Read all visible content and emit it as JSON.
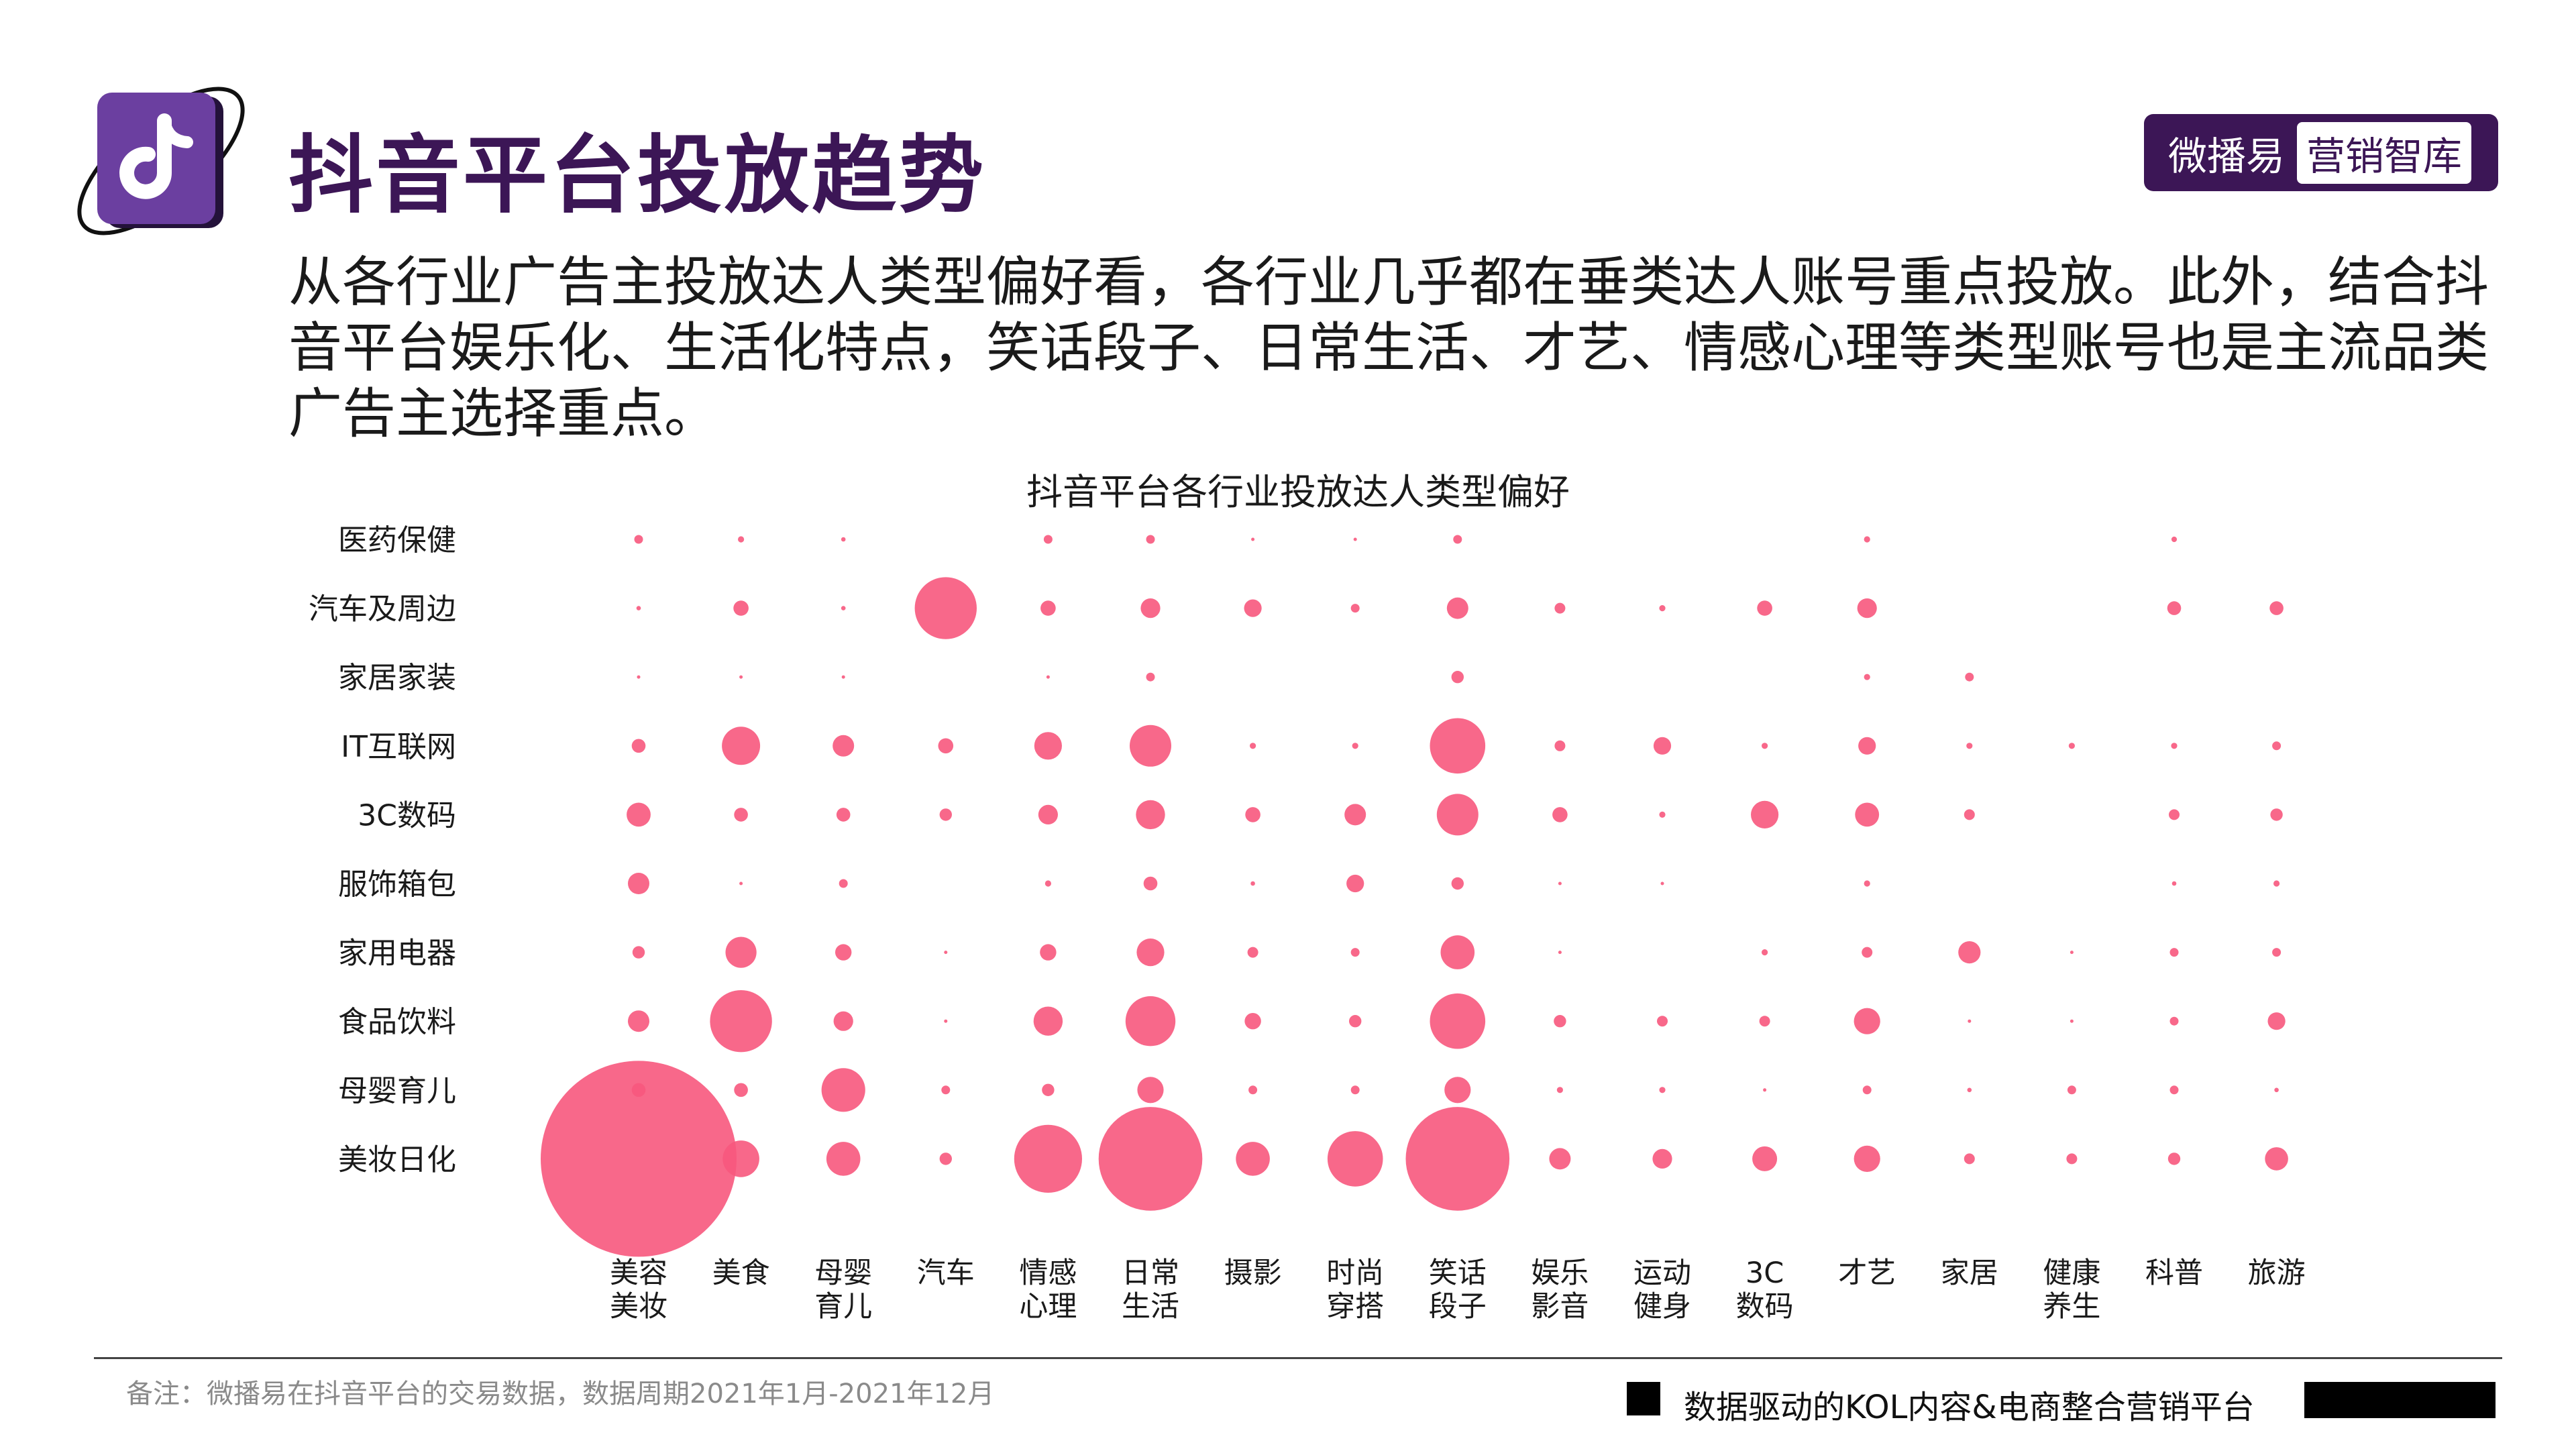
{
  "header": {
    "title": "抖音平台投放趋势",
    "brand": {
      "name": "微播易",
      "tag": "营销智库"
    },
    "intro": "从各行业广告主投放达人类型偏好看，各行业几乎都在垂类达人账号重点投放。此外，结合抖音平台娱乐化、生活化特点，笑话段子、日常生活、才艺、情感心理等类型账号也是主流品类广告主选择重点。"
  },
  "colors": {
    "accent": "#3c1656",
    "bubble": "#f7587d"
  },
  "chart_data": {
    "type": "bubble-matrix",
    "title": "抖音平台各行业投放达人类型偏好",
    "y_categories": [
      "医药保健",
      "汽车及周边",
      "家居家装",
      "IT互联网",
      "3C数码",
      "服饰箱包",
      "家用电器",
      "食品饮料",
      "母婴育儿",
      "美妆日化"
    ],
    "x_categories": [
      [
        "美容",
        "美妆"
      ],
      [
        "美食"
      ],
      [
        "母婴",
        "育儿"
      ],
      [
        "汽车"
      ],
      [
        "情感",
        "心理"
      ],
      [
        "日常",
        "生活"
      ],
      [
        "摄影"
      ],
      [
        "时尚",
        "穿搭"
      ],
      [
        "笑话",
        "段子"
      ],
      [
        "娱乐",
        "影音"
      ],
      [
        "运动",
        "健身"
      ],
      [
        "3C",
        "数码"
      ],
      [
        "才艺"
      ],
      [
        "家居"
      ],
      [
        "健康",
        "养生"
      ],
      [
        "科普"
      ],
      [
        "旅游"
      ]
    ],
    "values": {
      "医药保健": [
        2,
        1,
        0.5,
        0,
        2,
        2,
        0.3,
        0.3,
        2,
        0,
        0,
        0,
        1,
        0,
        0,
        0.8,
        0
      ],
      "汽车及周边": [
        0.5,
        6,
        0.5,
        100,
        6,
        10,
        8,
        2,
        12,
        3,
        1,
        6,
        10,
        0,
        0,
        5,
        5
      ],
      "家居家装": [
        0.3,
        0.3,
        0.3,
        0,
        0.3,
        2,
        0,
        0,
        4,
        0,
        0,
        0,
        1,
        2,
        0,
        0,
        0
      ],
      "IT互联网": [
        5,
        38,
        12,
        6,
        20,
        45,
        1,
        1,
        80,
        3,
        8,
        1,
        8,
        1,
        1,
        1,
        2
      ],
      "3C数码": [
        15,
        5,
        5,
        4,
        10,
        22,
        6,
        12,
        45,
        6,
        1,
        20,
        15,
        3,
        0,
        3,
        4
      ],
      "服饰箱包": [
        12,
        0.3,
        2,
        0,
        1,
        5,
        0.5,
        8,
        4,
        0.3,
        0.3,
        0,
        1,
        0,
        0,
        0.5,
        1
      ],
      "家用电器": [
        4,
        25,
        7,
        0.3,
        7,
        20,
        3,
        2,
        30,
        0.3,
        0,
        1,
        3,
        13,
        0.3,
        2,
        2
      ],
      "食品饮料": [
        12,
        100,
        10,
        0.3,
        22,
        65,
        7,
        4,
        80,
        4,
        3,
        3,
        18,
        0.3,
        0.3,
        2,
        8
      ],
      "母婴育儿": [
        5,
        5,
        50,
        2,
        4,
        18,
        2,
        2,
        18,
        1,
        1,
        0.3,
        2,
        0.5,
        2,
        2,
        0.5
      ],
      "美妆日化": [
        1000,
        35,
        30,
        4,
        120,
        280,
        30,
        80,
        280,
        12,
        10,
        16,
        18,
        3,
        3,
        4,
        14
      ]
    }
  },
  "footer": {
    "note": "备注：微播易在抖音平台的交易数据，数据周期2021年1月-2021年12月",
    "slogan": "数据驱动的KOL内容&电商整合营销平台"
  }
}
